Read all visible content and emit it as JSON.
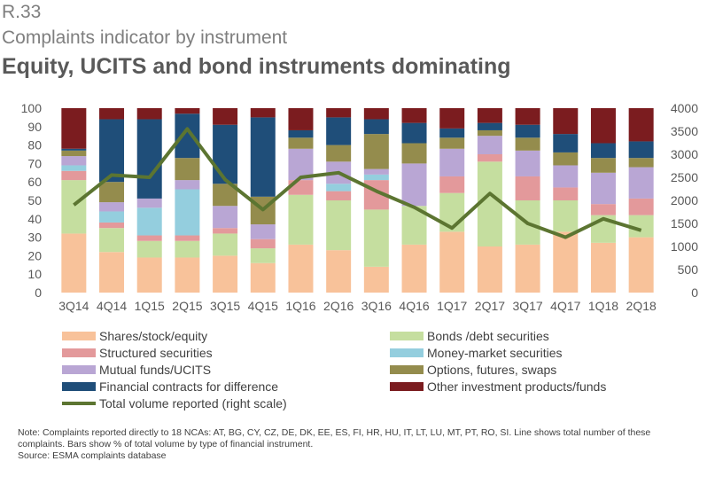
{
  "header": {
    "ref": "R.33",
    "subtitle": "Complaints indicator by instrument",
    "title": "Equity, UCITS and bond instruments dominating"
  },
  "note": {
    "line1": "Note: Complaints reported directly to 18 NCAs: AT, BG, CY, CZ, DE, DK, EE, ES, FI, HR, HU, IT, LT, LU, MT, PT, RO, SI. Line shows total number of these complaints. Bars show % of total volume by type of financial instrument.",
    "line2": "Source: ESMA complaints database"
  },
  "chart_data": {
    "type": "bar",
    "stacked": true,
    "categories": [
      "3Q14",
      "4Q14",
      "1Q15",
      "2Q15",
      "3Q15",
      "4Q15",
      "1Q16",
      "2Q16",
      "3Q16",
      "4Q16",
      "1Q17",
      "2Q17",
      "3Q17",
      "4Q17",
      "1Q18",
      "2Q18"
    ],
    "ylim": [
      0,
      100
    ],
    "yticks": [
      0,
      10,
      20,
      30,
      40,
      50,
      60,
      70,
      80,
      90,
      100
    ],
    "y2lim": [
      0,
      4000
    ],
    "y2ticks": [
      0,
      500,
      1000,
      1500,
      2000,
      2500,
      3000,
      3500,
      4000
    ],
    "series": [
      {
        "name": "Shares/stock/equity",
        "color": "#f8c29a",
        "values": [
          32,
          22,
          19,
          19,
          20,
          16,
          26,
          23,
          14,
          26,
          33,
          25,
          26,
          33,
          27,
          30
        ]
      },
      {
        "name": "Bonds /debt securities",
        "color": "#c5de9f",
        "values": [
          29,
          13,
          9,
          9,
          12,
          8,
          27,
          27,
          31,
          21,
          21,
          46,
          24,
          17,
          15,
          12
        ]
      },
      {
        "name": "Structured securities",
        "color": "#e3999b",
        "values": [
          5,
          3,
          3,
          3,
          3,
          5,
          8,
          5,
          16,
          0,
          9,
          4,
          13,
          7,
          6,
          9
        ]
      },
      {
        "name": "Money-market securities",
        "color": "#94cede",
        "values": [
          3,
          6,
          15,
          25,
          0,
          0,
          0,
          4,
          3,
          0,
          0,
          0,
          0,
          0,
          0,
          0
        ]
      },
      {
        "name": "Mutual funds/UCITS",
        "color": "#b9a6d4",
        "values": [
          5,
          5,
          5,
          5,
          12,
          8,
          17,
          12,
          3,
          23,
          15,
          10,
          14,
          12,
          17,
          17
        ]
      },
      {
        "name": "Options, futures, swaps",
        "color": "#948c4d",
        "values": [
          3,
          11,
          0,
          12,
          12,
          15,
          6,
          9,
          19,
          11,
          6,
          3,
          7,
          7,
          8,
          5
        ]
      },
      {
        "name": "Financial contracts for difference",
        "color": "#1f4e79",
        "values": [
          1,
          34,
          43,
          24,
          32,
          43,
          4,
          15,
          8,
          11,
          5,
          4,
          7,
          10,
          8,
          9
        ]
      },
      {
        "name": "Other investment products/funds",
        "color": "#7b1c1f",
        "values": [
          22,
          6,
          6,
          3,
          9,
          5,
          12,
          5,
          6,
          8,
          11,
          8,
          9,
          14,
          19,
          18
        ]
      }
    ],
    "line": {
      "name": "Total volume reported (right scale)",
      "color": "#5c7531",
      "values": [
        1900,
        2550,
        2500,
        3550,
        2450,
        1800,
        2500,
        2600,
        2200,
        1850,
        1400,
        2150,
        1500,
        1200,
        1600,
        1350
      ]
    }
  }
}
